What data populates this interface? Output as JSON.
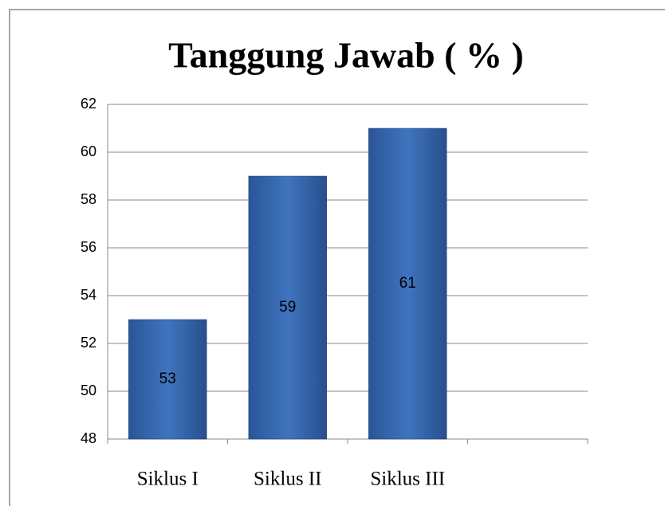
{
  "chart_data": {
    "type": "bar",
    "title": "Tanggung Jawab ( % )",
    "categories": [
      "Siklus I",
      "Siklus II",
      "Siklus III",
      null
    ],
    "values": [
      53,
      59,
      61,
      null
    ],
    "color": "#3a6db3",
    "ylim": [
      48,
      62
    ],
    "yticks": [
      48,
      50,
      52,
      54,
      56,
      58,
      60,
      62
    ],
    "grid": true
  }
}
